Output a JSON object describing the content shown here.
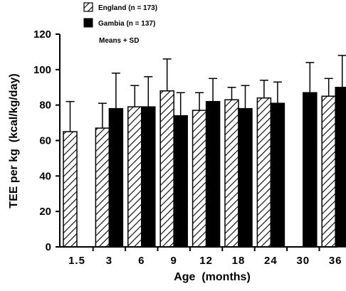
{
  "chart_data": {
    "type": "bar",
    "title": "",
    "xlabel": "Age  (months)",
    "ylabel": "TEE per kg  (kcal/kg/day)",
    "ylim": [
      0,
      120
    ],
    "yticks": [
      0,
      20,
      40,
      60,
      80,
      100,
      120
    ],
    "categories": [
      "1.5",
      "3",
      "6",
      "9",
      "12",
      "18",
      "24",
      "30",
      "36"
    ],
    "series": [
      {
        "name": "England  (n = 173)",
        "pattern": "hatched",
        "values": [
          65,
          67,
          79,
          88,
          77,
          83,
          84,
          null,
          85
        ],
        "sd": [
          17,
          14,
          12,
          18,
          10,
          7,
          10,
          null,
          10
        ]
      },
      {
        "name": "Gambia  (n = 137)",
        "pattern": "solid",
        "values": [
          null,
          78,
          79,
          74,
          82,
          78,
          81,
          87,
          90
        ],
        "sd": [
          null,
          20,
          17,
          13,
          13,
          13,
          12,
          17,
          18
        ]
      }
    ],
    "annotation": "Means + SD",
    "legend_position": "top",
    "grid": false,
    "colors": {
      "hatched": "#000000",
      "solid": "#000000",
      "background": "#ffffff"
    }
  }
}
